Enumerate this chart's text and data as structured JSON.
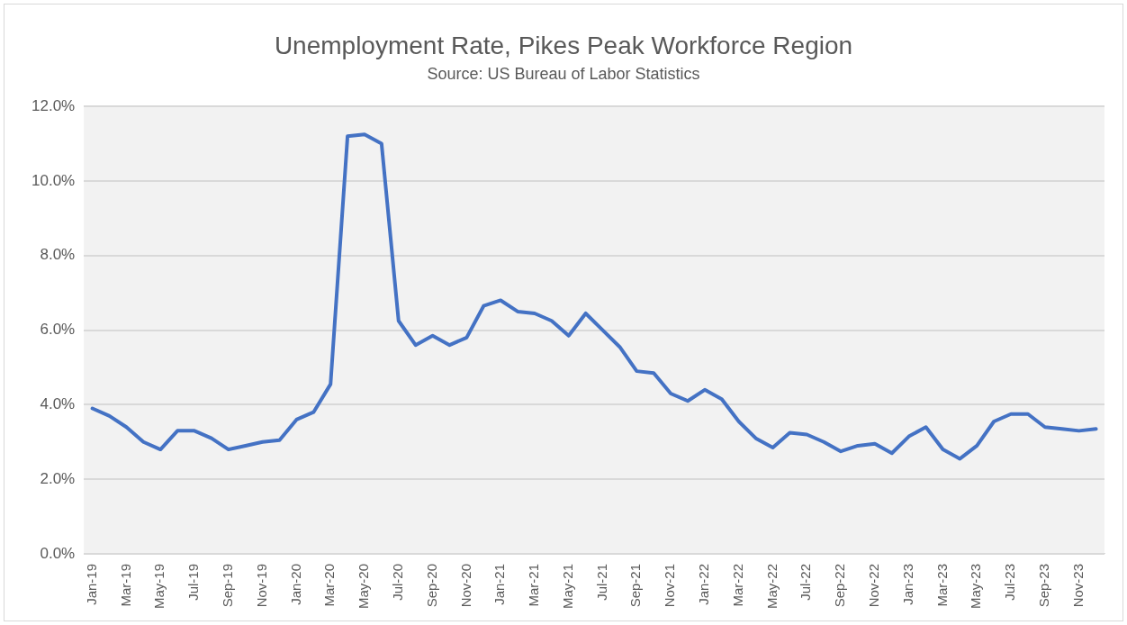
{
  "chart_data": {
    "type": "line",
    "title": "Unemployment Rate, Pikes Peak Workforce Region",
    "subtitle": "Source: US Bureau of Labor Statistics",
    "categories": [
      "Jan-19",
      null,
      "Mar-19",
      null,
      "May-19",
      null,
      "Jul-19",
      null,
      "Sep-19",
      null,
      "Nov-19",
      null,
      "Jan-20",
      null,
      "Mar-20",
      null,
      "May-20",
      null,
      "Jul-20",
      null,
      "Sep-20",
      null,
      "Nov-20",
      null,
      "Jan-21",
      null,
      "Mar-21",
      null,
      "May-21",
      null,
      "Jul-21",
      null,
      "Sep-21",
      null,
      "Nov-21",
      null,
      "Jan-22",
      null,
      "Mar-22",
      null,
      "May-22",
      null,
      "Jul-22",
      null,
      "Sep-22",
      null,
      "Nov-22",
      null,
      "Jan-23",
      null,
      "Mar-23",
      null,
      "May-23",
      null,
      "Jul-23",
      null,
      "Sep-23",
      null,
      "Nov-23",
      null
    ],
    "series": [
      {
        "color": "#4472c4",
        "values": [
          3.9,
          3.7,
          3.4,
          3.0,
          2.8,
          3.3,
          3.3,
          3.1,
          2.8,
          2.9,
          3.0,
          3.05,
          3.6,
          3.8,
          4.55,
          11.2,
          11.25,
          11.0,
          6.25,
          5.6,
          5.85,
          5.6,
          5.8,
          6.65,
          6.8,
          6.5,
          6.45,
          6.25,
          5.85,
          6.45,
          6.0,
          5.55,
          4.9,
          4.85,
          4.3,
          4.1,
          4.4,
          4.15,
          3.55,
          3.1,
          2.85,
          3.25,
          3.2,
          3.0,
          2.75,
          2.9,
          2.95,
          2.7,
          3.15,
          3.4,
          2.8,
          2.55,
          2.9,
          3.55,
          3.75,
          3.75,
          3.4,
          3.35,
          3.3,
          3.35
        ]
      }
    ],
    "ylim": [
      0,
      12
    ],
    "yticks": [
      {
        "value": 0,
        "label": "0.0%"
      },
      {
        "value": 2,
        "label": "2.0%"
      },
      {
        "value": 4,
        "label": "4.0%"
      },
      {
        "value": 6,
        "label": "6.0%"
      },
      {
        "value": 8,
        "label": "8.0%"
      },
      {
        "value": 10,
        "label": "10.0%"
      },
      {
        "value": 12,
        "label": "12.0%"
      }
    ],
    "grid": "y",
    "legend": false,
    "marker": "none",
    "line_style": "solid"
  }
}
